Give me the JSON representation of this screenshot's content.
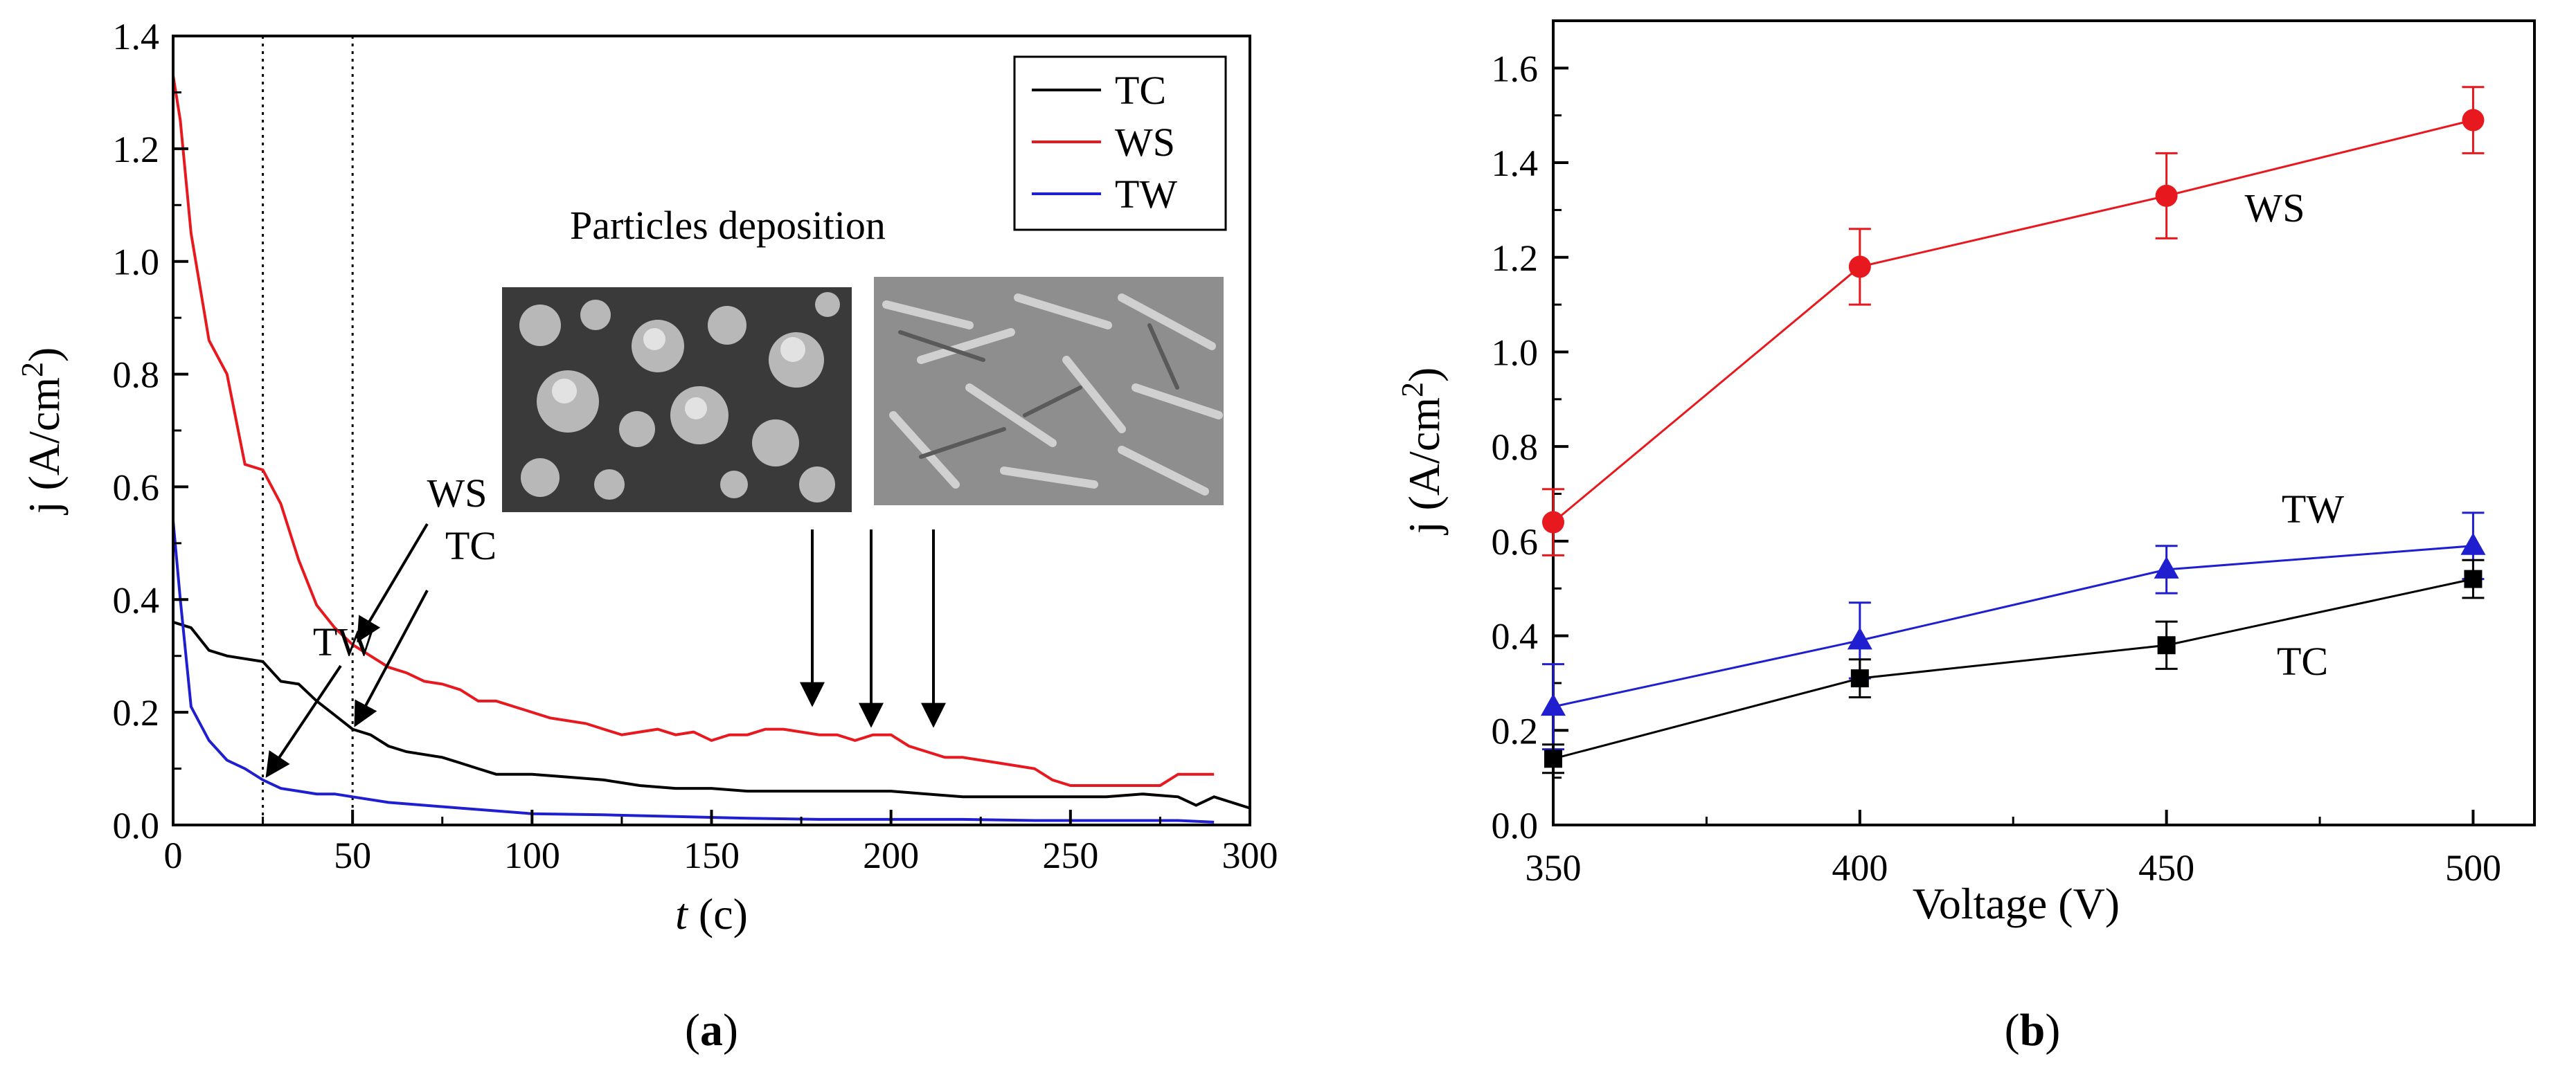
{
  "chart_data": [
    {
      "panel_label": "a",
      "type": "line",
      "xlabel_symbol": "t",
      "xlabel_unit": "(c)",
      "ylabel": "j (A/cm",
      "ylabel_sup": "2",
      "ylabel_close": ")",
      "xlim": [
        0,
        300
      ],
      "ylim": [
        0,
        1.4
      ],
      "x_ticks": [
        0,
        50,
        100,
        150,
        200,
        250,
        300
      ],
      "y_ticks": [
        "0.0",
        "0.2",
        "0.4",
        "0.6",
        "0.8",
        "1.0",
        "1.2",
        "1.4"
      ],
      "grid": false,
      "legend_position": "top-right",
      "vertical_reference_lines": [
        25,
        50
      ],
      "inset_title": "Particles deposition",
      "series": [
        {
          "name": "TC",
          "color": "#000000",
          "x": [
            0,
            5,
            10,
            15,
            20,
            25,
            30,
            35,
            40,
            45,
            50,
            55,
            60,
            65,
            70,
            75,
            80,
            85,
            90,
            95,
            100,
            110,
            120,
            130,
            140,
            150,
            160,
            170,
            180,
            190,
            200,
            210,
            220,
            230,
            240,
            250,
            260,
            270,
            280,
            285,
            290,
            300
          ],
          "y": [
            0.36,
            0.35,
            0.31,
            0.3,
            0.295,
            0.29,
            0.255,
            0.25,
            0.22,
            0.195,
            0.17,
            0.16,
            0.14,
            0.13,
            0.125,
            0.12,
            0.11,
            0.1,
            0.09,
            0.09,
            0.09,
            0.085,
            0.08,
            0.07,
            0.065,
            0.065,
            0.06,
            0.06,
            0.06,
            0.06,
            0.06,
            0.055,
            0.05,
            0.05,
            0.05,
            0.05,
            0.05,
            0.055,
            0.05,
            0.035,
            0.05,
            0.03
          ]
        },
        {
          "name": "WS",
          "color": "#e8191e",
          "x": [
            0,
            2,
            5,
            10,
            15,
            20,
            25,
            30,
            35,
            40,
            45,
            50,
            55,
            60,
            65,
            70,
            75,
            80,
            85,
            90,
            95,
            100,
            105,
            110,
            115,
            120,
            125,
            130,
            135,
            140,
            145,
            150,
            155,
            160,
            165,
            170,
            175,
            180,
            185,
            190,
            195,
            200,
            205,
            210,
            215,
            220,
            225,
            230,
            235,
            240,
            245,
            250,
            255,
            260,
            265,
            270,
            275,
            280,
            285,
            290
          ],
          "y": [
            1.33,
            1.25,
            1.05,
            0.86,
            0.8,
            0.64,
            0.63,
            0.57,
            0.47,
            0.39,
            0.35,
            0.32,
            0.3,
            0.28,
            0.27,
            0.255,
            0.25,
            0.24,
            0.22,
            0.22,
            0.21,
            0.2,
            0.19,
            0.185,
            0.18,
            0.17,
            0.16,
            0.165,
            0.17,
            0.16,
            0.165,
            0.15,
            0.16,
            0.16,
            0.17,
            0.17,
            0.165,
            0.16,
            0.16,
            0.15,
            0.16,
            0.16,
            0.14,
            0.13,
            0.12,
            0.12,
            0.115,
            0.11,
            0.105,
            0.1,
            0.08,
            0.07,
            0.07,
            0.07,
            0.07,
            0.07,
            0.07,
            0.09,
            0.09,
            0.09
          ]
        },
        {
          "name": "TW",
          "color": "#1f1fd0",
          "x": [
            0,
            2,
            5,
            10,
            15,
            20,
            25,
            30,
            35,
            40,
            45,
            50,
            60,
            70,
            80,
            90,
            100,
            120,
            140,
            160,
            180,
            200,
            220,
            240,
            260,
            280,
            290
          ],
          "y": [
            0.54,
            0.4,
            0.21,
            0.15,
            0.115,
            0.1,
            0.08,
            0.065,
            0.06,
            0.055,
            0.055,
            0.05,
            0.04,
            0.035,
            0.03,
            0.025,
            0.02,
            0.018,
            0.015,
            0.012,
            0.01,
            0.01,
            0.01,
            0.008,
            0.008,
            0.008,
            0.005
          ]
        }
      ],
      "annotations": [
        {
          "text": "WS",
          "points_to_x": 50,
          "points_to_y": 0.32
        },
        {
          "text": "TC",
          "points_to_x": 50,
          "points_to_y": 0.17
        },
        {
          "text": "TW",
          "points_to_x": 25,
          "points_to_y": 0.08
        }
      ]
    },
    {
      "panel_label": "b",
      "type": "line",
      "xlabel": "Voltage (V)",
      "ylabel": "j (A/cm",
      "ylabel_sup": "2",
      "ylabel_close": ")",
      "xlim": [
        350,
        510
      ],
      "ylim": [
        0,
        1.7
      ],
      "x_ticks": [
        350,
        400,
        450,
        500
      ],
      "y_ticks": [
        "0.0",
        "0.2",
        "0.4",
        "0.6",
        "0.8",
        "1.0",
        "1.2",
        "1.4",
        "1.6"
      ],
      "grid": false,
      "series": [
        {
          "name": "WS",
          "color": "#e8191e",
          "marker": "circle",
          "x": [
            350,
            400,
            450,
            500
          ],
          "y": [
            0.64,
            1.18,
            1.33,
            1.49
          ],
          "err": [
            0.07,
            0.08,
            0.09,
            0.07
          ]
        },
        {
          "name": "TW",
          "color": "#1f1fd0",
          "marker": "triangle",
          "x": [
            350,
            400,
            450,
            500
          ],
          "y": [
            0.25,
            0.39,
            0.54,
            0.59
          ],
          "err": [
            0.09,
            0.08,
            0.05,
            0.07
          ]
        },
        {
          "name": "TC",
          "color": "#000000",
          "marker": "square",
          "x": [
            350,
            400,
            450,
            500
          ],
          "y": [
            0.14,
            0.31,
            0.38,
            0.52
          ],
          "err": [
            0.03,
            0.04,
            0.05,
            0.04
          ]
        }
      ]
    }
  ]
}
